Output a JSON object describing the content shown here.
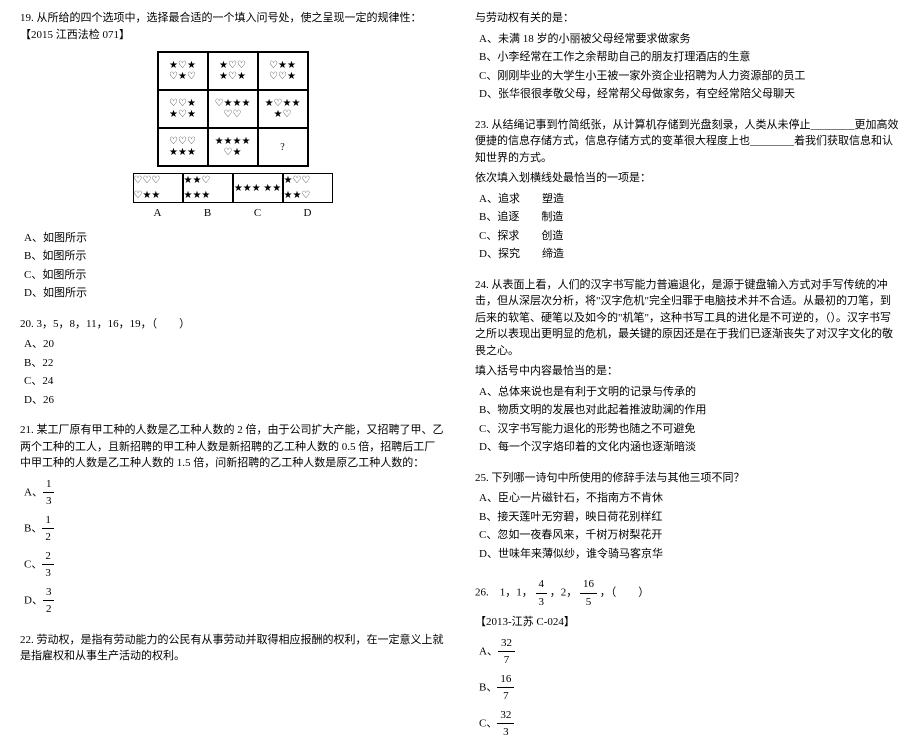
{
  "left": {
    "q19": {
      "text": "19. 从所给的四个选项中，选择最合适的一个填入问号处，使之呈现一定的规律性：【2015 江西法检 071】",
      "grid": [
        "★♡★ ♡★♡",
        "★♡♡ ★♡★",
        "♡★★ ♡♡★",
        "♡♡★ ★♡★",
        "♡★★★ ♡♡",
        "★♡★★ ★♡",
        "♡♡♡ ★★★",
        "★★★★ ♡★",
        "?"
      ],
      "answers": [
        "♡♡♡ ♡★★",
        "★★♡ ★★★",
        "★★★ ★★",
        "★♡♡ ★★♡"
      ],
      "labels": [
        "A",
        "B",
        "C",
        "D"
      ],
      "options": [
        "A、如图所示",
        "B、如图所示",
        "C、如图所示",
        "D、如图所示"
      ]
    },
    "q20": {
      "text": "20. 3，5，8，11，16，19，（　　）",
      "options": [
        "A、20",
        "B、22",
        "C、24",
        "D、26"
      ]
    },
    "q21": {
      "text": "21. 某工厂原有甲工种的人数是乙工种人数的 2 倍，由于公司扩大产能，又招聘了甲、乙两个工种的工人，且新招聘的甲工种人数是新招聘的乙工种人数的 0.5 倍，招聘后工厂中甲工种的人数是乙工种人数的 1.5 倍，问新招聘的乙工种人数是原乙工种人数的：",
      "fracs": [
        {
          "label": "A、",
          "num": "1",
          "den": "3"
        },
        {
          "label": "B、",
          "num": "1",
          "den": "2"
        },
        {
          "label": "C、",
          "num": "2",
          "den": "3"
        },
        {
          "label": "D、",
          "num": "3",
          "den": "2"
        }
      ]
    },
    "q22": {
      "text": "22. 劳动权，是指有劳动能力的公民有从事劳动并取得相应报酬的权利，在一定意义上就是指雇权和从事生产活动的权利。"
    }
  },
  "right": {
    "q22cont": {
      "text": "与劳动权有关的是：",
      "options": [
        "A、未满 18 岁的小丽被父母经常要求做家务",
        "B、小李经常在工作之余帮助自己的朋友打理酒店的生意",
        "C、刚刚毕业的大学生小王被一家外资企业招聘为人力资源部的员工",
        "D、张华很很孝敬父母，经常帮父母做家务，有空经常陪父母聊天"
      ]
    },
    "q23": {
      "text": "23. 从结绳记事到竹简纸张，从计算机存储到光盘刻录，人类从未停止________更加高效便捷的信息存储方式，信息存储方式的变革很大程度上也________着我们获取信息和认知世界的方式。",
      "sub": "依次填入划横线处最恰当的一项是：",
      "options": [
        "A、追求　　塑造",
        "B、追逐　　制造",
        "C、探求　　创造",
        "D、探究　　缔造"
      ]
    },
    "q24": {
      "text": "24. 从表面上看，人们的汉字书写能力普遍退化，是源于键盘输入方式对手写传统的冲击，但从深层次分析，将\"汉字危机\"完全归罪于电脑技术并不合适。从最初的刀笔，到后来的软笔、硬笔以及如今的\"机笔\"，这种书写工具的进化是不可逆的，（）。汉字书写之所以表现出更明显的危机，最关键的原因还是在于我们已逐渐丧失了对汉字文化的敬畏之心。",
      "sub": "填入括号中内容最恰当的是：",
      "options": [
        "A、总体来说也是有利于文明的记录与传承的",
        "B、物质文明的发展也对此起着推波助澜的作用",
        "C、汉字书写能力退化的形势也随之不可避免",
        "D、每一个汉字烙印着的文化内涵也逐渐暗淡"
      ]
    },
    "q25": {
      "text": "25. 下列哪一诗句中所使用的修辞手法与其他三项不同？",
      "options": [
        "A、臣心一片磁针石，不指南方不肯休",
        "B、接天莲叶无穷碧，映日荷花别样红",
        "C、忽如一夜春风来，千树万树梨花开",
        "D、世味年来薄似纱，谁令骑马客京华"
      ]
    },
    "q26": {
      "seq_prefix": "26.　1，1，",
      "seq_f1": {
        "num": "4",
        "den": "3"
      },
      "seq_mid": "，2，",
      "seq_f2": {
        "num": "16",
        "den": "5"
      },
      "seq_suffix": "，（　　）",
      "note": "【2013-江苏 C-024】",
      "fracs": [
        {
          "label": "A、",
          "num": "32",
          "den": "7"
        },
        {
          "label": "B、",
          "num": "16",
          "den": "7"
        },
        {
          "label": "C、",
          "num": "32",
          "den": "3"
        }
      ]
    }
  }
}
